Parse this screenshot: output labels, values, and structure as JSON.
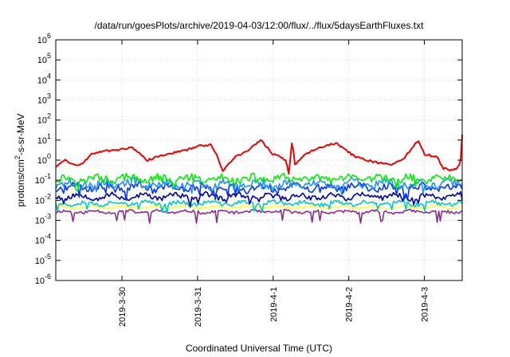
{
  "chart_data": {
    "type": "line",
    "title": "/data/run/goesPlots/archive/2019-04-03/12:00/flux/../flux/5daysEarthFluxes.txt",
    "xlabel": "Coordinated Universal Time (UTC)",
    "ylabel": "protons/cm2-s-sr-MeV",
    "ylabel_parts": {
      "base": "protons/cm",
      "sup": "2",
      "rest": "-s-sr-MeV"
    },
    "yscale": "log",
    "ylim": [
      1e-06,
      1000000.0
    ],
    "yticks": [
      {
        "base": "10",
        "exp": "-6",
        "value": 1e-06
      },
      {
        "base": "10",
        "exp": "-5",
        "value": 1e-05
      },
      {
        "base": "10",
        "exp": "-4",
        "value": 0.0001
      },
      {
        "base": "10",
        "exp": "-3",
        "value": 0.001
      },
      {
        "base": "10",
        "exp": "-2",
        "value": 0.01
      },
      {
        "base": "10",
        "exp": "-1",
        "value": 0.1
      },
      {
        "base": "10",
        "exp": "0",
        "value": 1.0
      },
      {
        "base": "10",
        "exp": "1",
        "value": 10.0
      },
      {
        "base": "10",
        "exp": "2",
        "value": 100.0
      },
      {
        "base": "10",
        "exp": "3",
        "value": 1000.0
      },
      {
        "base": "10",
        "exp": "4",
        "value": 10000.0
      },
      {
        "base": "10",
        "exp": "5",
        "value": 100000.0
      },
      {
        "base": "10",
        "exp": "6",
        "value": 1000000.0
      }
    ],
    "xlim": [
      "2019-03-29T03:00",
      "2019-04-03T12:00"
    ],
    "xticks": [
      {
        "label": "2019-3-30",
        "value": "2019-03-30T00:00"
      },
      {
        "label": "2019-3-31",
        "value": "2019-03-31T00:00"
      },
      {
        "label": "2019-4-1",
        "value": "2019-04-01T00:00"
      },
      {
        "label": "2019-4-2",
        "value": "2019-04-02T00:00"
      },
      {
        "label": "2019-4-3",
        "value": "2019-04-03T00:00"
      }
    ],
    "grid": true,
    "legend": "none",
    "series": [
      {
        "color": "#8b2c8b",
        "base": 0.0026,
        "amp": 0.05,
        "noise": 0.07,
        "dips": 0.5,
        "seed": 11,
        "x": [
          "2019-03-29T03:00",
          "2019-03-30T00:00",
          "2019-03-31T00:00",
          "2019-04-01T00:00",
          "2019-04-02T00:00",
          "2019-04-03T00:00",
          "2019-04-03T12:00"
        ],
        "y": [
          0.0026,
          0.0027,
          0.0026,
          0.0027,
          0.0026,
          0.0027,
          0.0026
        ]
      },
      {
        "color": "#ffff33",
        "base": 0.0045,
        "amp": 0.05,
        "noise": 0.05,
        "dips": 0.0,
        "seed": 23,
        "x": [
          "2019-03-29T03:00",
          "2019-03-30T00:00",
          "2019-03-31T00:00",
          "2019-04-01T00:00",
          "2019-04-02T00:00",
          "2019-04-03T00:00",
          "2019-04-03T12:00"
        ],
        "y": [
          0.0045,
          0.0046,
          0.0045,
          0.0046,
          0.0045,
          0.0046,
          0.0045
        ]
      },
      {
        "color": "#00c8c8",
        "base": 0.007,
        "amp": 0.08,
        "noise": 0.1,
        "dips": 0.35,
        "seed": 37,
        "x": [
          "2019-03-29T03:00",
          "2019-03-30T00:00",
          "2019-03-31T00:00",
          "2019-04-01T00:00",
          "2019-04-02T00:00",
          "2019-04-03T00:00",
          "2019-04-03T12:00"
        ],
        "y": [
          0.007,
          0.0072,
          0.007,
          0.0071,
          0.007,
          0.0072,
          0.0071
        ]
      },
      {
        "color": "#0000a0",
        "base": 0.016,
        "amp": 0.1,
        "noise": 0.13,
        "dips": 0.35,
        "seed": 53,
        "x": [
          "2019-03-29T03:00",
          "2019-03-30T00:00",
          "2019-03-31T00:00",
          "2019-04-01T00:00",
          "2019-04-02T00:00",
          "2019-04-03T00:00",
          "2019-04-03T12:00"
        ],
        "y": [
          0.016,
          0.015,
          0.016,
          0.015,
          0.016,
          0.015,
          0.017
        ]
      },
      {
        "color": "#0033ff",
        "base": 0.04,
        "amp": 0.12,
        "noise": 0.18,
        "dips": 0.4,
        "seed": 71,
        "x": [
          "2019-03-29T03:00",
          "2019-03-30T00:00",
          "2019-03-31T00:00",
          "2019-04-01T00:00",
          "2019-04-02T00:00",
          "2019-04-03T00:00",
          "2019-04-03T12:00"
        ],
        "y": [
          0.04,
          0.045,
          0.04,
          0.04,
          0.045,
          0.04,
          0.04
        ]
      },
      {
        "color": "#1e90ff",
        "base": 0.06,
        "amp": 0.12,
        "noise": 0.2,
        "dips": 0.4,
        "seed": 89,
        "x": [
          "2019-03-29T03:00",
          "2019-03-30T00:00",
          "2019-03-31T00:00",
          "2019-04-01T00:00",
          "2019-04-02T00:00",
          "2019-04-03T00:00",
          "2019-04-03T12:00"
        ],
        "y": [
          0.06,
          0.07,
          0.06,
          0.06,
          0.07,
          0.06,
          0.07
        ]
      },
      {
        "color": "#00ee00",
        "base": 0.11,
        "amp": 0.1,
        "noise": 0.18,
        "dips": 0.35,
        "seed": 97,
        "x": [
          "2019-03-29T03:00",
          "2019-03-30T00:00",
          "2019-03-31T00:00",
          "2019-04-01T00:00",
          "2019-04-02T00:00",
          "2019-04-03T00:00",
          "2019-04-03T12:00"
        ],
        "y": [
          0.11,
          0.12,
          0.11,
          0.12,
          0.11,
          0.12,
          0.12
        ]
      },
      {
        "color": "#ee0000",
        "base": 0,
        "amp": 0,
        "noise": 0.05,
        "dips": 0.0,
        "seed": 131,
        "x": [
          "2019-03-29T03:00",
          "2019-03-29T06:00",
          "2019-03-29T10:00",
          "2019-03-29T12:00",
          "2019-03-29T14:00",
          "2019-03-29T18:00",
          "2019-03-29T22:00",
          "2019-03-30T03:00",
          "2019-03-30T08:00",
          "2019-03-30T14:00",
          "2019-03-30T20:00",
          "2019-03-31T00:00",
          "2019-03-31T04:00",
          "2019-03-31T06:00",
          "2019-03-31T08:00",
          "2019-03-31T12:00",
          "2019-03-31T16:00",
          "2019-03-31T20:00",
          "2019-04-01T00:00",
          "2019-04-01T02:00",
          "2019-04-01T04:00",
          "2019-04-01T05:00",
          "2019-04-01T06:00",
          "2019-04-01T07:00",
          "2019-04-01T09:00",
          "2019-04-01T14:00",
          "2019-04-01T20:00",
          "2019-04-02T02:00",
          "2019-04-02T08:00",
          "2019-04-02T14:00",
          "2019-04-02T18:00",
          "2019-04-02T22:00",
          "2019-04-03T00:00",
          "2019-04-03T04:00",
          "2019-04-03T06:00",
          "2019-04-03T09:00",
          "2019-04-03T11:00",
          "2019-04-03T11:30",
          "2019-04-03T12:00"
        ],
        "y": [
          0.5,
          1.0,
          0.5,
          0.8,
          2.0,
          3.0,
          3.0,
          4.5,
          1.0,
          2.0,
          3.0,
          5.0,
          6.0,
          2.0,
          0.3,
          1.5,
          3.0,
          10.0,
          2.0,
          1.5,
          1.0,
          0.2,
          10.0,
          0.5,
          1.5,
          4.0,
          7.0,
          1.5,
          0.8,
          0.6,
          1.5,
          10.0,
          2.0,
          1.5,
          0.4,
          0.3,
          0.5,
          1.0,
          20.0
        ]
      }
    ]
  }
}
